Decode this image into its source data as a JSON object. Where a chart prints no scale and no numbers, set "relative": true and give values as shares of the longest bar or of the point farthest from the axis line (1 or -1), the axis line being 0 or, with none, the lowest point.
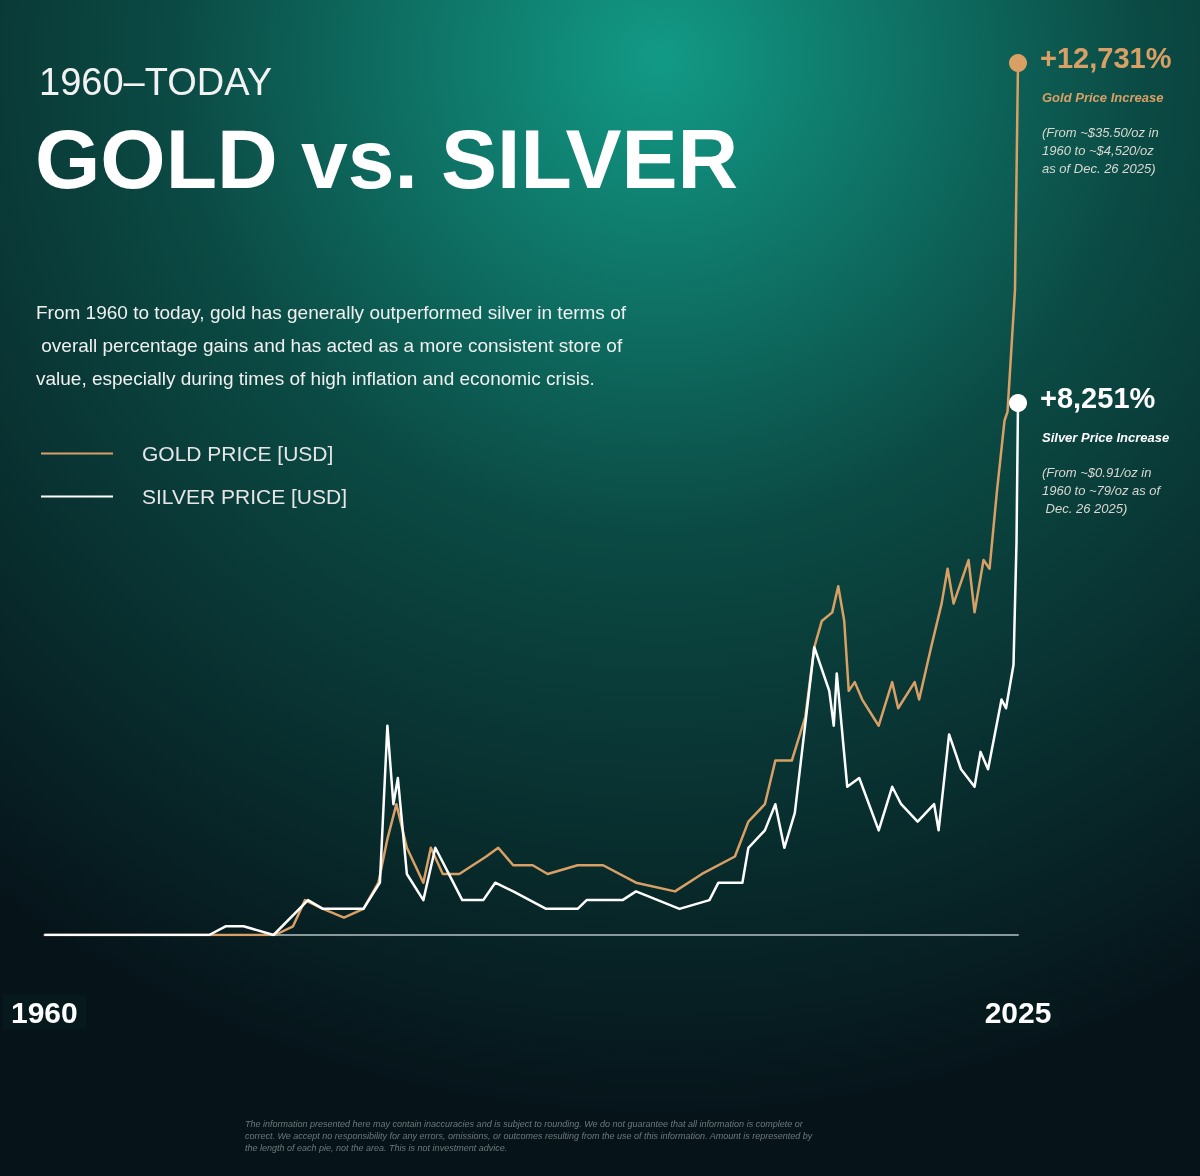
{
  "chart_data": {
    "type": "line",
    "title": "GOLD vs. SILVER",
    "subtitle": "1960–TODAY",
    "relative": true,
    "legend": "top left",
    "xlim": [
      1960,
      2025
    ],
    "xticks": [
      1960,
      2025
    ],
    "annotations": [
      "From 1960 to today, gold has generally outperformed silver in terms of overall percentage gains and has acted as a more consistent store of value, especially during times of high inflation and economic crisis.",
      "The information presented here may contain inaccuracies and is subject to rounding. We do not guarantee that all information is complete or correct. We accept no responsibility for any errors, omissions, or outcomes resulting from the use of this information. Amount is represented by the length of each pie, not the area. This is not investment advice.",
      "Gold Price Increase",
      "(From ~$35.50/oz in 1960 to ~$4,520/oz as of Dec. 26 2025)",
      "Silver Price Increase",
      "(From ~$0.91/oz in 1960 to ~79/oz as of Dec. 26 2025)",
      {
        "text": "+12,731%",
        "x": 2025,
        "y": 1
      },
      {
        "text": "+8,251%",
        "x": 2025,
        "y": 0.61
      }
    ],
    "series": [
      {
        "name": "GOLD PRICE [USD]",
        "color": "#d9a066",
        "x": [
          1960,
          1975.4,
          1976.6,
          1977.4,
          1978.6,
          1980,
          1981.3,
          1982.3,
          1982.9,
          1983.5,
          1984.2,
          1985.3,
          1985.8,
          1986.6,
          1987.7,
          1989.5,
          1990.3,
          1991.3,
          1992.6,
          1993.6,
          1995.6,
          1997.3,
          1999.5,
          2002.1,
          2003.9,
          2006.1,
          2007,
          2008.1,
          2008.8,
          2009.9,
          2010.8,
          2011.4,
          2011.9,
          2012.6,
          2013,
          2013.4,
          2013.7,
          2014.1,
          2014.6,
          2015.7,
          2016.6,
          2017,
          2018.1,
          2018.4,
          2019.2,
          2019.9,
          2020.3,
          2020.7,
          2021.7,
          2022.1,
          2022.7,
          2023.1,
          2023.6,
          2024.1,
          2024.3,
          2024.8,
          2025
        ],
        "values": [
          0,
          0,
          0.01,
          0.04,
          0.03,
          0.02,
          0.03,
          0.06,
          0.11,
          0.15,
          0.1,
          0.06,
          0.1,
          0.07,
          0.07,
          0.09,
          0.1,
          0.08,
          0.08,
          0.07,
          0.08,
          0.08,
          0.06,
          0.05,
          0.07,
          0.09,
          0.13,
          0.15,
          0.2,
          0.2,
          0.25,
          0.33,
          0.36,
          0.37,
          0.4,
          0.36,
          0.28,
          0.29,
          0.27,
          0.24,
          0.29,
          0.26,
          0.29,
          0.27,
          0.33,
          0.38,
          0.42,
          0.38,
          0.43,
          0.37,
          0.43,
          0.42,
          0.51,
          0.59,
          0.6,
          0.74,
          1
        ]
      },
      {
        "name": "SILVER PRICE [USD]",
        "color": "#ffffff",
        "x": [
          1960,
          1971,
          1972.1,
          1973.3,
          1975.3,
          1977.6,
          1978.6,
          1980,
          1981.3,
          1982.4,
          1982.9,
          1983.3,
          1983.6,
          1984.2,
          1985.3,
          1986.1,
          1987.3,
          1987.9,
          1989.3,
          1990.1,
          1991.3,
          1993.5,
          1995.6,
          1996.2,
          1998.6,
          1999.5,
          2002.4,
          2004.4,
          2005,
          2006.6,
          2007,
          2008.1,
          2008.8,
          2009.4,
          2010.1,
          2011.4,
          2012.4,
          2012.7,
          2012.9,
          2013.6,
          2014.4,
          2015.7,
          2016.6,
          2017.2,
          2018.3,
          2019.4,
          2019.7,
          2020.4,
          2021.2,
          2022.1,
          2022.5,
          2023,
          2023.9,
          2024.2,
          2024.7,
          2024.9,
          2025
        ],
        "values": [
          0,
          0,
          0.01,
          0.01,
          0,
          0.04,
          0.03,
          0.03,
          0.03,
          0.06,
          0.24,
          0.15,
          0.18,
          0.07,
          0.04,
          0.1,
          0.06,
          0.04,
          0.04,
          0.06,
          0.05,
          0.03,
          0.03,
          0.04,
          0.04,
          0.05,
          0.03,
          0.04,
          0.06,
          0.06,
          0.1,
          0.12,
          0.15,
          0.1,
          0.14,
          0.33,
          0.28,
          0.24,
          0.3,
          0.17,
          0.18,
          0.12,
          0.17,
          0.15,
          0.13,
          0.15,
          0.12,
          0.23,
          0.19,
          0.17,
          0.21,
          0.19,
          0.27,
          0.26,
          0.31,
          0.45,
          0.61
        ]
      }
    ]
  }
}
